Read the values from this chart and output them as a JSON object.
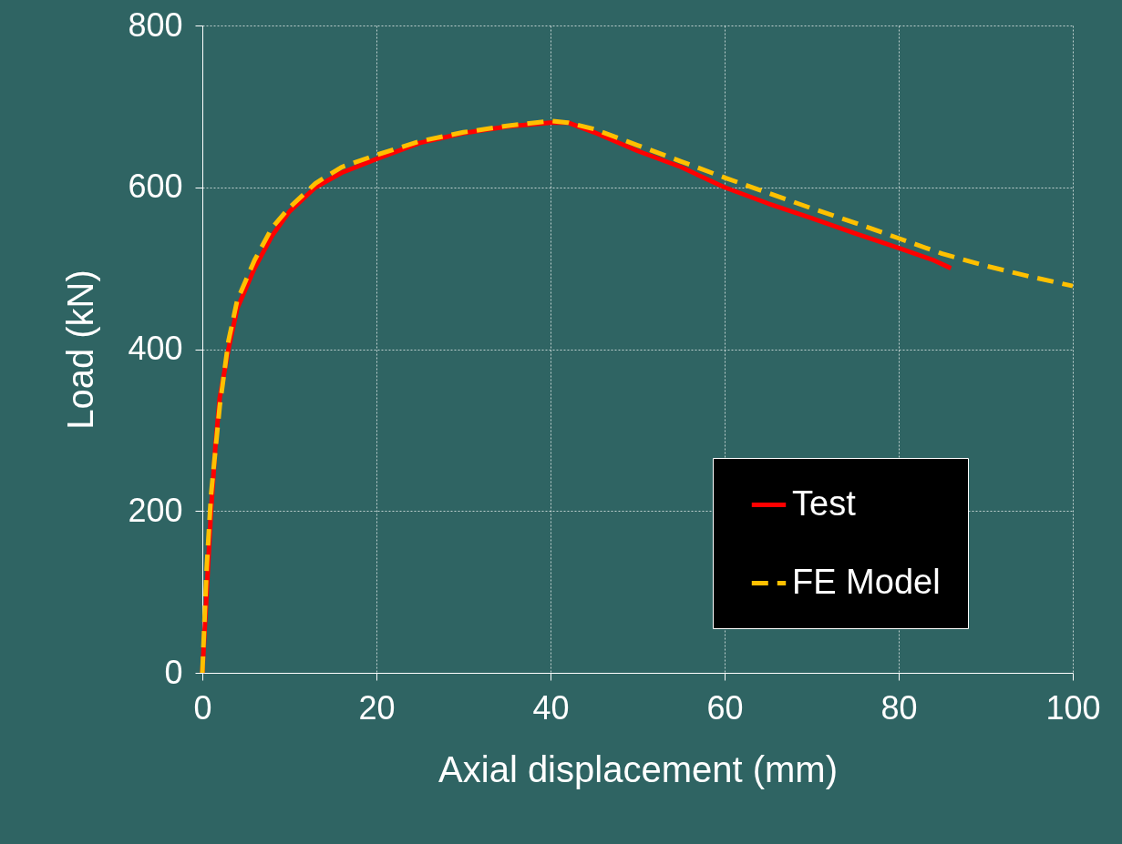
{
  "chart_data": {
    "type": "line",
    "xlabel": "Axial displacement (mm)",
    "ylabel": "Load (kN)",
    "xlim": [
      0,
      100
    ],
    "xticks": [
      0,
      20,
      40,
      60,
      80,
      100
    ],
    "ylim": [
      0,
      800
    ],
    "yticks": [
      0,
      200,
      400,
      600,
      800
    ],
    "grid": true,
    "legend": "bottom right",
    "marker": "none",
    "series": [
      {
        "name": "Test",
        "color": "#ff0000",
        "line_style": "solid",
        "x": [
          0,
          0.5,
          1,
          1.5,
          2,
          3,
          4,
          6,
          8,
          10,
          13,
          16,
          20,
          25,
          30,
          35,
          40,
          42,
          45,
          50,
          55,
          60,
          65,
          70,
          75,
          80,
          84,
          86
        ],
        "values": [
          0,
          100,
          200,
          280,
          340,
          400,
          450,
          500,
          540,
          570,
          600,
          618,
          635,
          655,
          667,
          675,
          680,
          680,
          668,
          645,
          625,
          600,
          580,
          562,
          543,
          525,
          510,
          500
        ]
      },
      {
        "name": "FE Model",
        "color": "#ffc000",
        "line_style": "dashed",
        "x": [
          0,
          0.5,
          1,
          2,
          3,
          4,
          6,
          8,
          10,
          13,
          16,
          20,
          25,
          30,
          35,
          40,
          42,
          45,
          50,
          55,
          60,
          65,
          70,
          75,
          80,
          85,
          90,
          95,
          100
        ],
        "values": [
          0,
          130,
          220,
          330,
          410,
          460,
          510,
          550,
          575,
          605,
          625,
          640,
          657,
          668,
          676,
          682,
          680,
          672,
          652,
          632,
          612,
          593,
          574,
          556,
          537,
          518,
          503,
          490,
          478
        ]
      }
    ]
  }
}
